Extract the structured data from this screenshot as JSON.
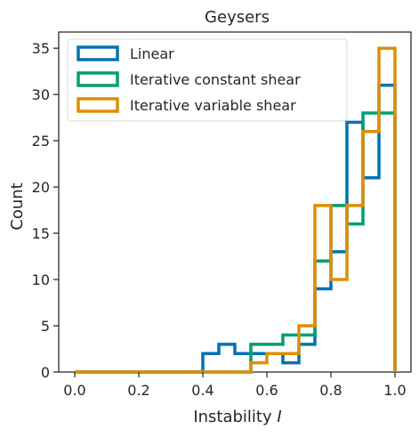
{
  "chart_data": {
    "type": "histogram",
    "title": "Geysers",
    "xlabel": "Instability",
    "xlabel_symbol": "I",
    "ylabel": "Count",
    "xlim": [
      -0.05,
      1.05
    ],
    "ylim": [
      0,
      36.75
    ],
    "xticks": [
      0.0,
      0.2,
      0.4,
      0.6,
      0.8,
      1.0
    ],
    "xtick_labels": [
      "0.0",
      "0.2",
      "0.4",
      "0.6",
      "0.8",
      "1.0"
    ],
    "yticks": [
      0,
      5,
      10,
      15,
      20,
      25,
      30,
      35
    ],
    "ytick_labels": [
      "0",
      "5",
      "10",
      "15",
      "20",
      "25",
      "30",
      "35"
    ],
    "bin_edges": [
      0.0,
      0.05,
      0.1,
      0.15,
      0.2,
      0.25,
      0.3,
      0.35,
      0.4,
      0.45,
      0.5,
      0.55,
      0.6,
      0.65,
      0.7,
      0.75,
      0.8,
      0.85,
      0.9,
      0.95,
      1.0
    ],
    "legend_position": "upper left",
    "grid": false,
    "series": [
      {
        "name": "Linear",
        "color": "#0173b2",
        "counts": [
          0,
          0,
          0,
          0,
          0,
          0,
          0,
          0,
          2,
          3,
          2,
          2,
          2,
          1,
          3,
          9,
          13,
          27,
          21,
          31
        ]
      },
      {
        "name": "Iterative constant shear",
        "color": "#029e73",
        "counts": [
          0,
          0,
          0,
          0,
          0,
          0,
          0,
          0,
          0,
          0,
          0,
          3,
          3,
          4,
          4,
          12,
          18,
          16,
          28,
          28
        ]
      },
      {
        "name": "Iterative variable shear",
        "color": "#de8f05",
        "counts": [
          0,
          0,
          0,
          0,
          0,
          0,
          0,
          0,
          0,
          0,
          0,
          1,
          2,
          2,
          5,
          18,
          10,
          18,
          26,
          35
        ]
      }
    ]
  }
}
